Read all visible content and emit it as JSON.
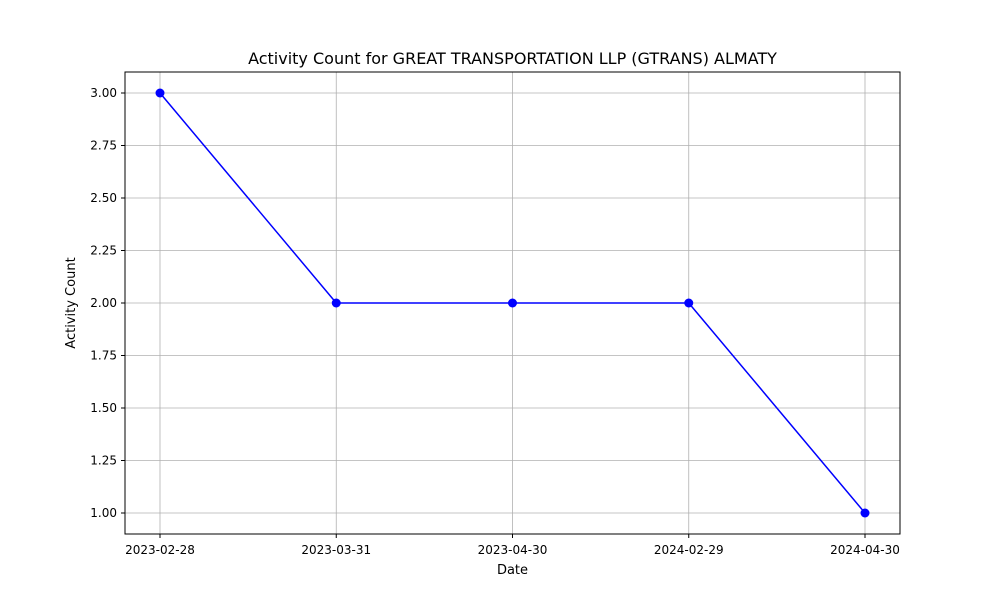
{
  "chart_data": {
    "type": "line",
    "title": "Activity Count for GREAT TRANSPORTATION LLP (GTRANS) ALMATY",
    "xlabel": "Date",
    "ylabel": "Activity Count",
    "categories": [
      "2023-02-28",
      "2023-03-31",
      "2023-04-30",
      "2024-02-29",
      "2024-04-30"
    ],
    "series": [
      {
        "values": [
          3,
          2,
          2,
          2,
          1
        ],
        "color": "#0000ff",
        "marker": "circle"
      }
    ],
    "ylim": [
      0.9,
      3.1
    ],
    "yticks": [
      1.0,
      1.25,
      1.5,
      1.75,
      2.0,
      2.25,
      2.5,
      2.75,
      3.0
    ],
    "ytick_labels": [
      "1.00",
      "1.25",
      "1.50",
      "1.75",
      "2.00",
      "2.25",
      "2.50",
      "2.75",
      "3.00"
    ],
    "grid": true,
    "legend": "none"
  }
}
